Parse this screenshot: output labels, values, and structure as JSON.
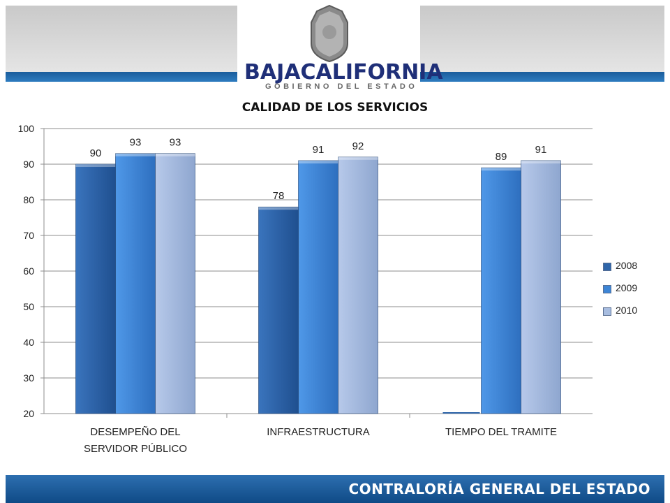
{
  "header": {
    "brand_left": "BAJA",
    "brand_right": "CALIFORNIA",
    "brand_sub": "GOBIERNO DEL ESTADO"
  },
  "footer": {
    "text": "CONTRALORÍA GENERAL DEL ESTADO"
  },
  "chart_data": {
    "type": "bar",
    "title": "CALIDAD DE LOS SERVICIOS",
    "categories": [
      "DESEMPEÑO DEL SERVIDOR PÚBLICO",
      "INFRAESTRUCTURA",
      "TIEMPO DEL TRAMITE"
    ],
    "category_lines": [
      [
        "DESEMPEÑO DEL",
        "SERVIDOR PÚBLICO"
      ],
      [
        "INFRAESTRUCTURA"
      ],
      [
        "TIEMPO DEL TRAMITE"
      ]
    ],
    "series": [
      {
        "name": "2008",
        "values": [
          90,
          78,
          null
        ],
        "color": "#2f66aa"
      },
      {
        "name": "2009",
        "values": [
          93,
          91,
          89
        ],
        "color": "#3d85d6"
      },
      {
        "name": "2010",
        "values": [
          93,
          92,
          91
        ],
        "color": "#a8bde0"
      }
    ],
    "ylim": [
      20,
      100
    ],
    "yticks": [
      20,
      30,
      40,
      50,
      60,
      70,
      80,
      90,
      100
    ],
    "grid": true,
    "legend": "right",
    "xlabel": "",
    "ylabel": ""
  }
}
